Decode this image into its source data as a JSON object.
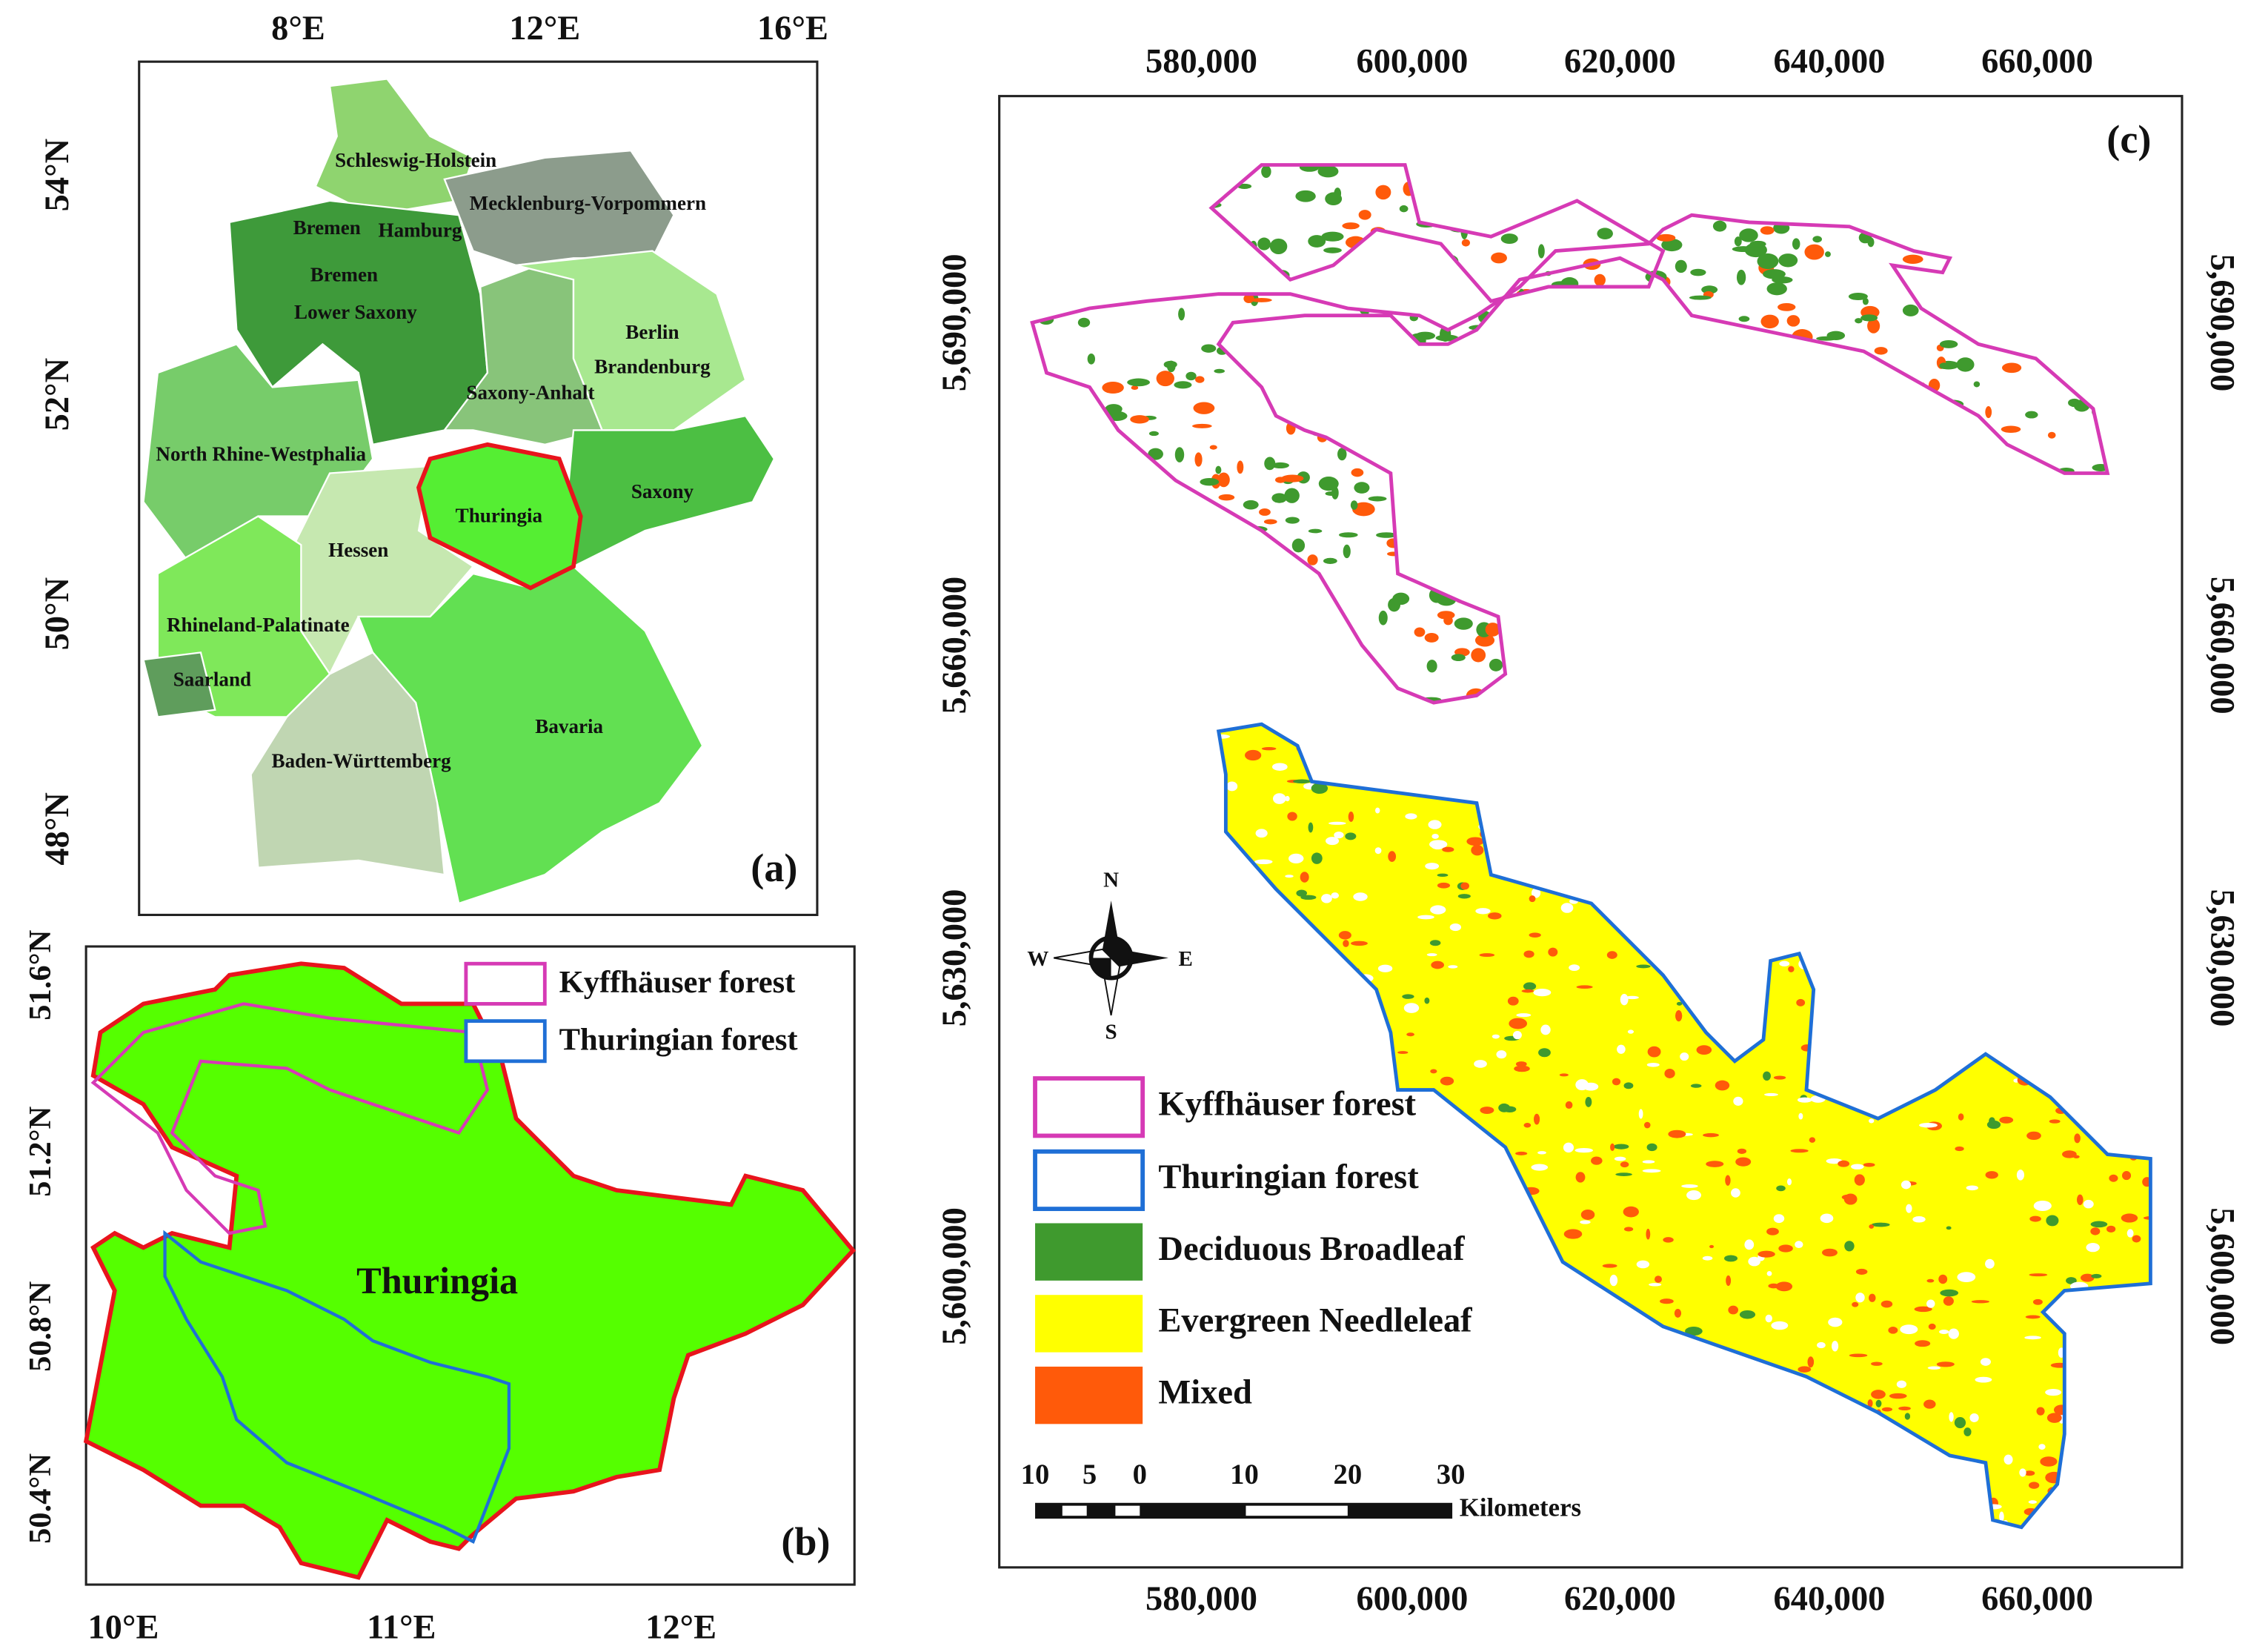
{
  "panel_a": {
    "label": "(a)",
    "lon_ticks": [
      "8°E",
      "12°E",
      "16°E"
    ],
    "lat_ticks": [
      "54°N",
      "52°N",
      "50°N",
      "48°N"
    ],
    "regions": [
      "Schleswig-Holstein",
      "Mecklenburg-Vorpommern",
      "Bremen",
      "Hamburg",
      "Bremen",
      "Lower Saxony",
      "Berlin",
      "Brandenburg",
      "Saxony-Anhalt",
      "North Rhine-Westphalia",
      "Saxony",
      "Thuringia",
      "Hessen",
      "Rhineland-Palatinate",
      "Saarland",
      "Bavaria",
      "Baden-Württemberg"
    ]
  },
  "panel_b": {
    "label": "(b)",
    "region": "Thuringia",
    "lon_ticks": [
      "10°E",
      "11°E",
      "12°E"
    ],
    "lat_ticks": [
      "51.6°N",
      "51.2°N",
      "50.8°N",
      "50.4°N"
    ],
    "legend": [
      "Kyffhäuser forest",
      "Thuringian forest"
    ]
  },
  "panel_c": {
    "label": "(c)",
    "easting_ticks": [
      "580,000",
      "600,000",
      "620,000",
      "640,000",
      "660,000"
    ],
    "northing_ticks": [
      "5,690,000",
      "5,660,000",
      "5,630,000",
      "5,600,000"
    ],
    "legend": [
      "Kyffhäuser forest",
      "Thuringian forest",
      "Deciduous Broadleaf",
      "Evergreen Needleleaf",
      "Mixed"
    ],
    "scale_bar": {
      "labels": [
        "10",
        "5",
        "0",
        "10",
        "20",
        "30"
      ],
      "unit": "Kilometers"
    },
    "compass": [
      "N",
      "S",
      "W",
      "E"
    ]
  }
}
